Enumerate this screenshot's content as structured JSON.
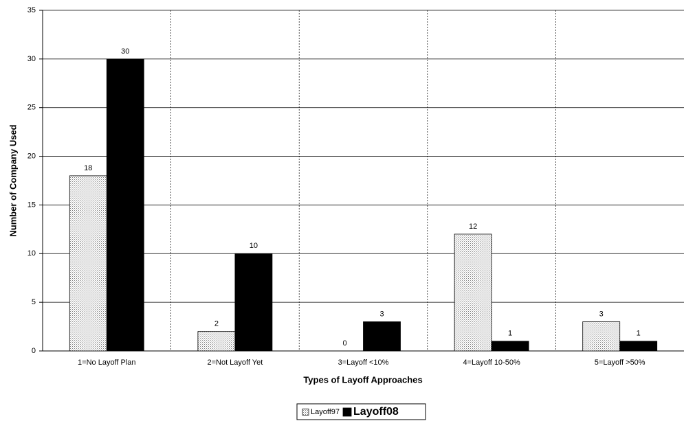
{
  "chart_data": {
    "type": "bar",
    "x_label": "Types of Layoff Approaches",
    "y_label": "Number of Company Used",
    "categories": [
      "1=No Layoff Plan",
      "2=Not Layoff Yet",
      "3=Layoff <10%",
      "4=Layoff 10-50%",
      "5=Layoff >50%"
    ],
    "series": [
      {
        "name": "Layoff97",
        "color": "#7f7f7f",
        "values": [
          18,
          2,
          0,
          12,
          3
        ]
      },
      {
        "name": "Layoff08",
        "color": "#000000",
        "values": [
          30,
          10,
          3,
          1,
          1
        ]
      }
    ],
    "ylim": [
      0,
      35
    ],
    "yticks": [
      0,
      5,
      10,
      15,
      20,
      25,
      30,
      35
    ],
    "grid": true,
    "legend_position": "bottom"
  }
}
